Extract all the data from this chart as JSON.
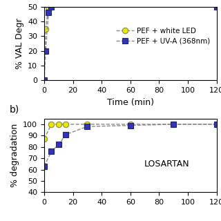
{
  "top_panel": {
    "ylabel": "% VAL Degr",
    "xlabel": "Time (min)",
    "xlim": [
      0,
      120
    ],
    "ylim": [
      0,
      50
    ],
    "yticks": [
      0,
      10,
      20,
      30,
      40,
      50
    ],
    "xticks": [
      0,
      20,
      40,
      60,
      80,
      100,
      120
    ],
    "series": [
      {
        "label": "PEF + white LED",
        "color": "#888888",
        "marker": "o",
        "markerfacecolor": "#e8e800",
        "markeredgecolor": "#888844",
        "x": [
          0,
          1,
          3,
          5,
          120
        ],
        "y": [
          0,
          35,
          50,
          50,
          50
        ]
      },
      {
        "label": "PEF + UV-A (368nm)",
        "color": "#888888",
        "marker": "s",
        "markerfacecolor": "#3333bb",
        "markeredgecolor": "#222266",
        "x": [
          0,
          1,
          3,
          5,
          120
        ],
        "y": [
          0,
          20,
          46,
          50,
          50
        ]
      }
    ]
  },
  "bottom_panel": {
    "ylabel": "% degradation",
    "xlim": [
      0,
      120
    ],
    "ylim": [
      40,
      105
    ],
    "yticks": [
      40,
      50,
      60,
      70,
      80,
      90,
      100
    ],
    "xticks": [
      0,
      20,
      40,
      60,
      80,
      100,
      120
    ],
    "label": "LOSARTAN",
    "series": [
      {
        "label": "PEF + white LED",
        "color": "#888888",
        "marker": "o",
        "markerfacecolor": "#e8e800",
        "markeredgecolor": "#888844",
        "x": [
          0,
          5,
          10,
          15,
          30,
          60,
          90,
          120
        ],
        "y": [
          87,
          100,
          100,
          100,
          100,
          100,
          100,
          100
        ]
      },
      {
        "label": "PEF + UV-A (368nm)",
        "color": "#888888",
        "marker": "s",
        "markerfacecolor": "#3333bb",
        "markeredgecolor": "#222266",
        "x": [
          0,
          5,
          10,
          15,
          30,
          60,
          90,
          120
        ],
        "y": [
          63,
          76,
          82,
          91,
          98,
          99,
          100,
          100
        ]
      }
    ]
  },
  "background_color": "#ffffff",
  "legend_fontsize": 7.5,
  "axis_fontsize": 9,
  "tick_fontsize": 8
}
